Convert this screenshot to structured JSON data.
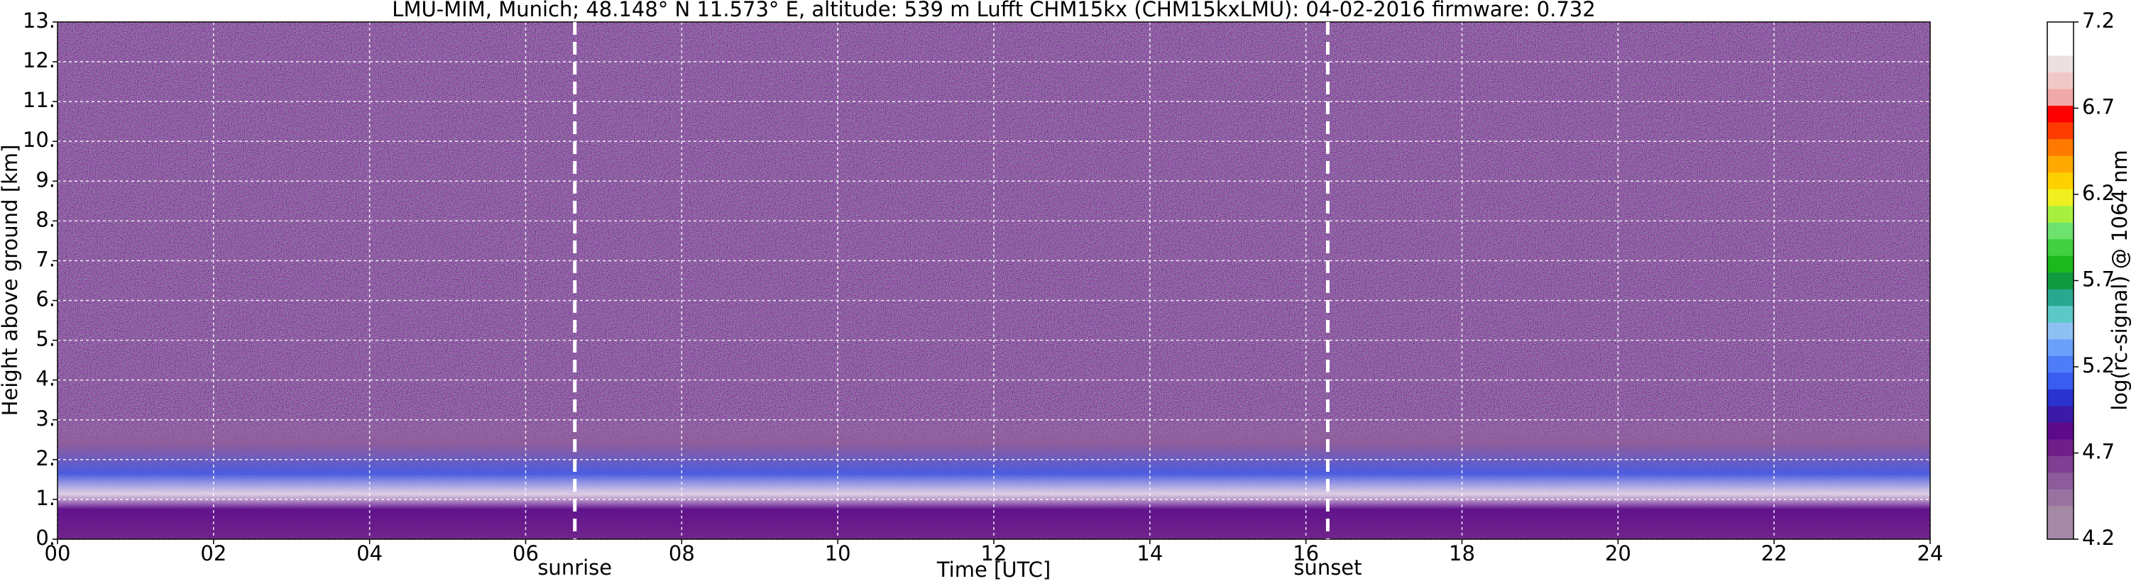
{
  "chart_data": {
    "type": "heatmap",
    "title": "LMU-MIM, Munich; 48.148° N 11.573° E, altitude: 539 m    Lufft CHM15kx (CHM15kxLMU): 04-02-2016    firmware: 0.732",
    "x_label": "Time [UTC]",
    "y_label": "Height above ground [km]",
    "xlim": [
      0,
      24
    ],
    "ylim": [
      0,
      13
    ],
    "xticks": [
      {
        "value": 0,
        "label": "00"
      },
      {
        "value": 2,
        "label": "02"
      },
      {
        "value": 4,
        "label": "04"
      },
      {
        "value": 6,
        "label": "06"
      },
      {
        "value": 8,
        "label": "08"
      },
      10,
      12,
      14,
      16,
      18,
      20,
      22,
      24
    ],
    "yticks": [
      {
        "value": 0,
        "label": "0."
      },
      {
        "value": 1,
        "label": "1."
      },
      {
        "value": 2,
        "label": "2."
      },
      {
        "value": 3,
        "label": "3."
      },
      {
        "value": 4,
        "label": "4."
      },
      {
        "value": 5,
        "label": "5."
      },
      {
        "value": 6,
        "label": "6."
      },
      {
        "value": 7,
        "label": "7."
      },
      {
        "value": 8,
        "label": "8."
      },
      {
        "value": 9,
        "label": "9."
      },
      {
        "value": 10,
        "label": "10."
      },
      {
        "value": 11,
        "label": "11."
      },
      {
        "value": 12,
        "label": "12."
      },
      {
        "value": 13,
        "label": "13."
      }
    ],
    "grid": true,
    "annotations": [
      {
        "text": "sunrise",
        "x": 6.63
      },
      {
        "text": "sunset",
        "x": 16.28
      }
    ],
    "colorbar": {
      "label": "log(rc-signal) @ 1064 nm",
      "clim": [
        4.2,
        7.2
      ],
      "ticks": [
        4.2,
        4.7,
        5.2,
        5.7,
        6.2,
        6.7,
        7.2
      ],
      "colors": [
        "#a58aa5",
        "#a58aa5",
        "#9a72a0",
        "#8e5c9a",
        "#7f3f92",
        "#6e1f88",
        "#5c0a8a",
        "#3c1aa8",
        "#2a32d0",
        "#3a5cf0",
        "#4f7cf8",
        "#6aa0fa",
        "#8ec0f4",
        "#5cc8c8",
        "#28a890",
        "#109a40",
        "#1cb81c",
        "#40d040",
        "#6ee26e",
        "#a8f040",
        "#f0f020",
        "#ffd000",
        "#ffa800",
        "#ff7800",
        "#ff3c00",
        "#ff0000",
        "#f0a8a8",
        "#f0c8c8",
        "#ece0e0",
        "#ffffff",
        "#ffffff"
      ]
    }
  }
}
